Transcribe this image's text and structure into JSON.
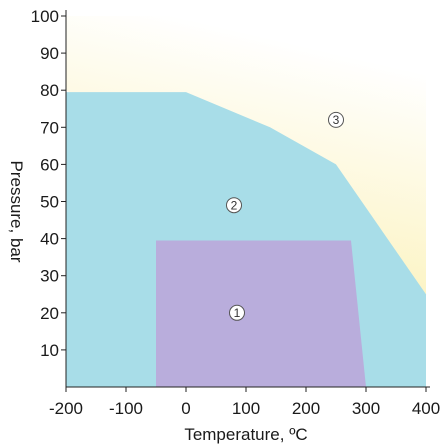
{
  "chart_data": {
    "type": "area",
    "xlabel": "Temperature, ºC",
    "ylabel": "Pressure, bar",
    "xlim": [
      -200,
      400
    ],
    "ylim": [
      0,
      100
    ],
    "x_ticks": [
      -200,
      -100,
      0,
      100,
      200,
      300,
      400
    ],
    "y_ticks": [
      10,
      20,
      30,
      40,
      50,
      60,
      70,
      80,
      90,
      100
    ],
    "grid": false,
    "regions": [
      {
        "label": "3",
        "fill": "#fdf6c8",
        "gradient_to": "#ffffff",
        "polygon": [
          [
            -200,
            80
          ],
          [
            -200,
            100
          ],
          [
            400,
            100
          ],
          [
            400,
            25
          ]
        ],
        "label_at": [
          250,
          72
        ]
      },
      {
        "label": "2",
        "fill": "#a8dde8",
        "polygon": [
          [
            -200,
            0
          ],
          [
            -200,
            79.5
          ],
          [
            0,
            79.5
          ],
          [
            140,
            70
          ],
          [
            250,
            60
          ],
          [
            400,
            25
          ],
          [
            400,
            0
          ]
        ],
        "label_at": [
          80,
          49
        ]
      },
      {
        "label": "1",
        "fill": "#b9addc",
        "polygon": [
          [
            -50,
            0
          ],
          [
            -50,
            39.5
          ],
          [
            275,
            39.5
          ],
          [
            300,
            0
          ]
        ],
        "label_at": [
          85,
          20
        ]
      }
    ]
  }
}
